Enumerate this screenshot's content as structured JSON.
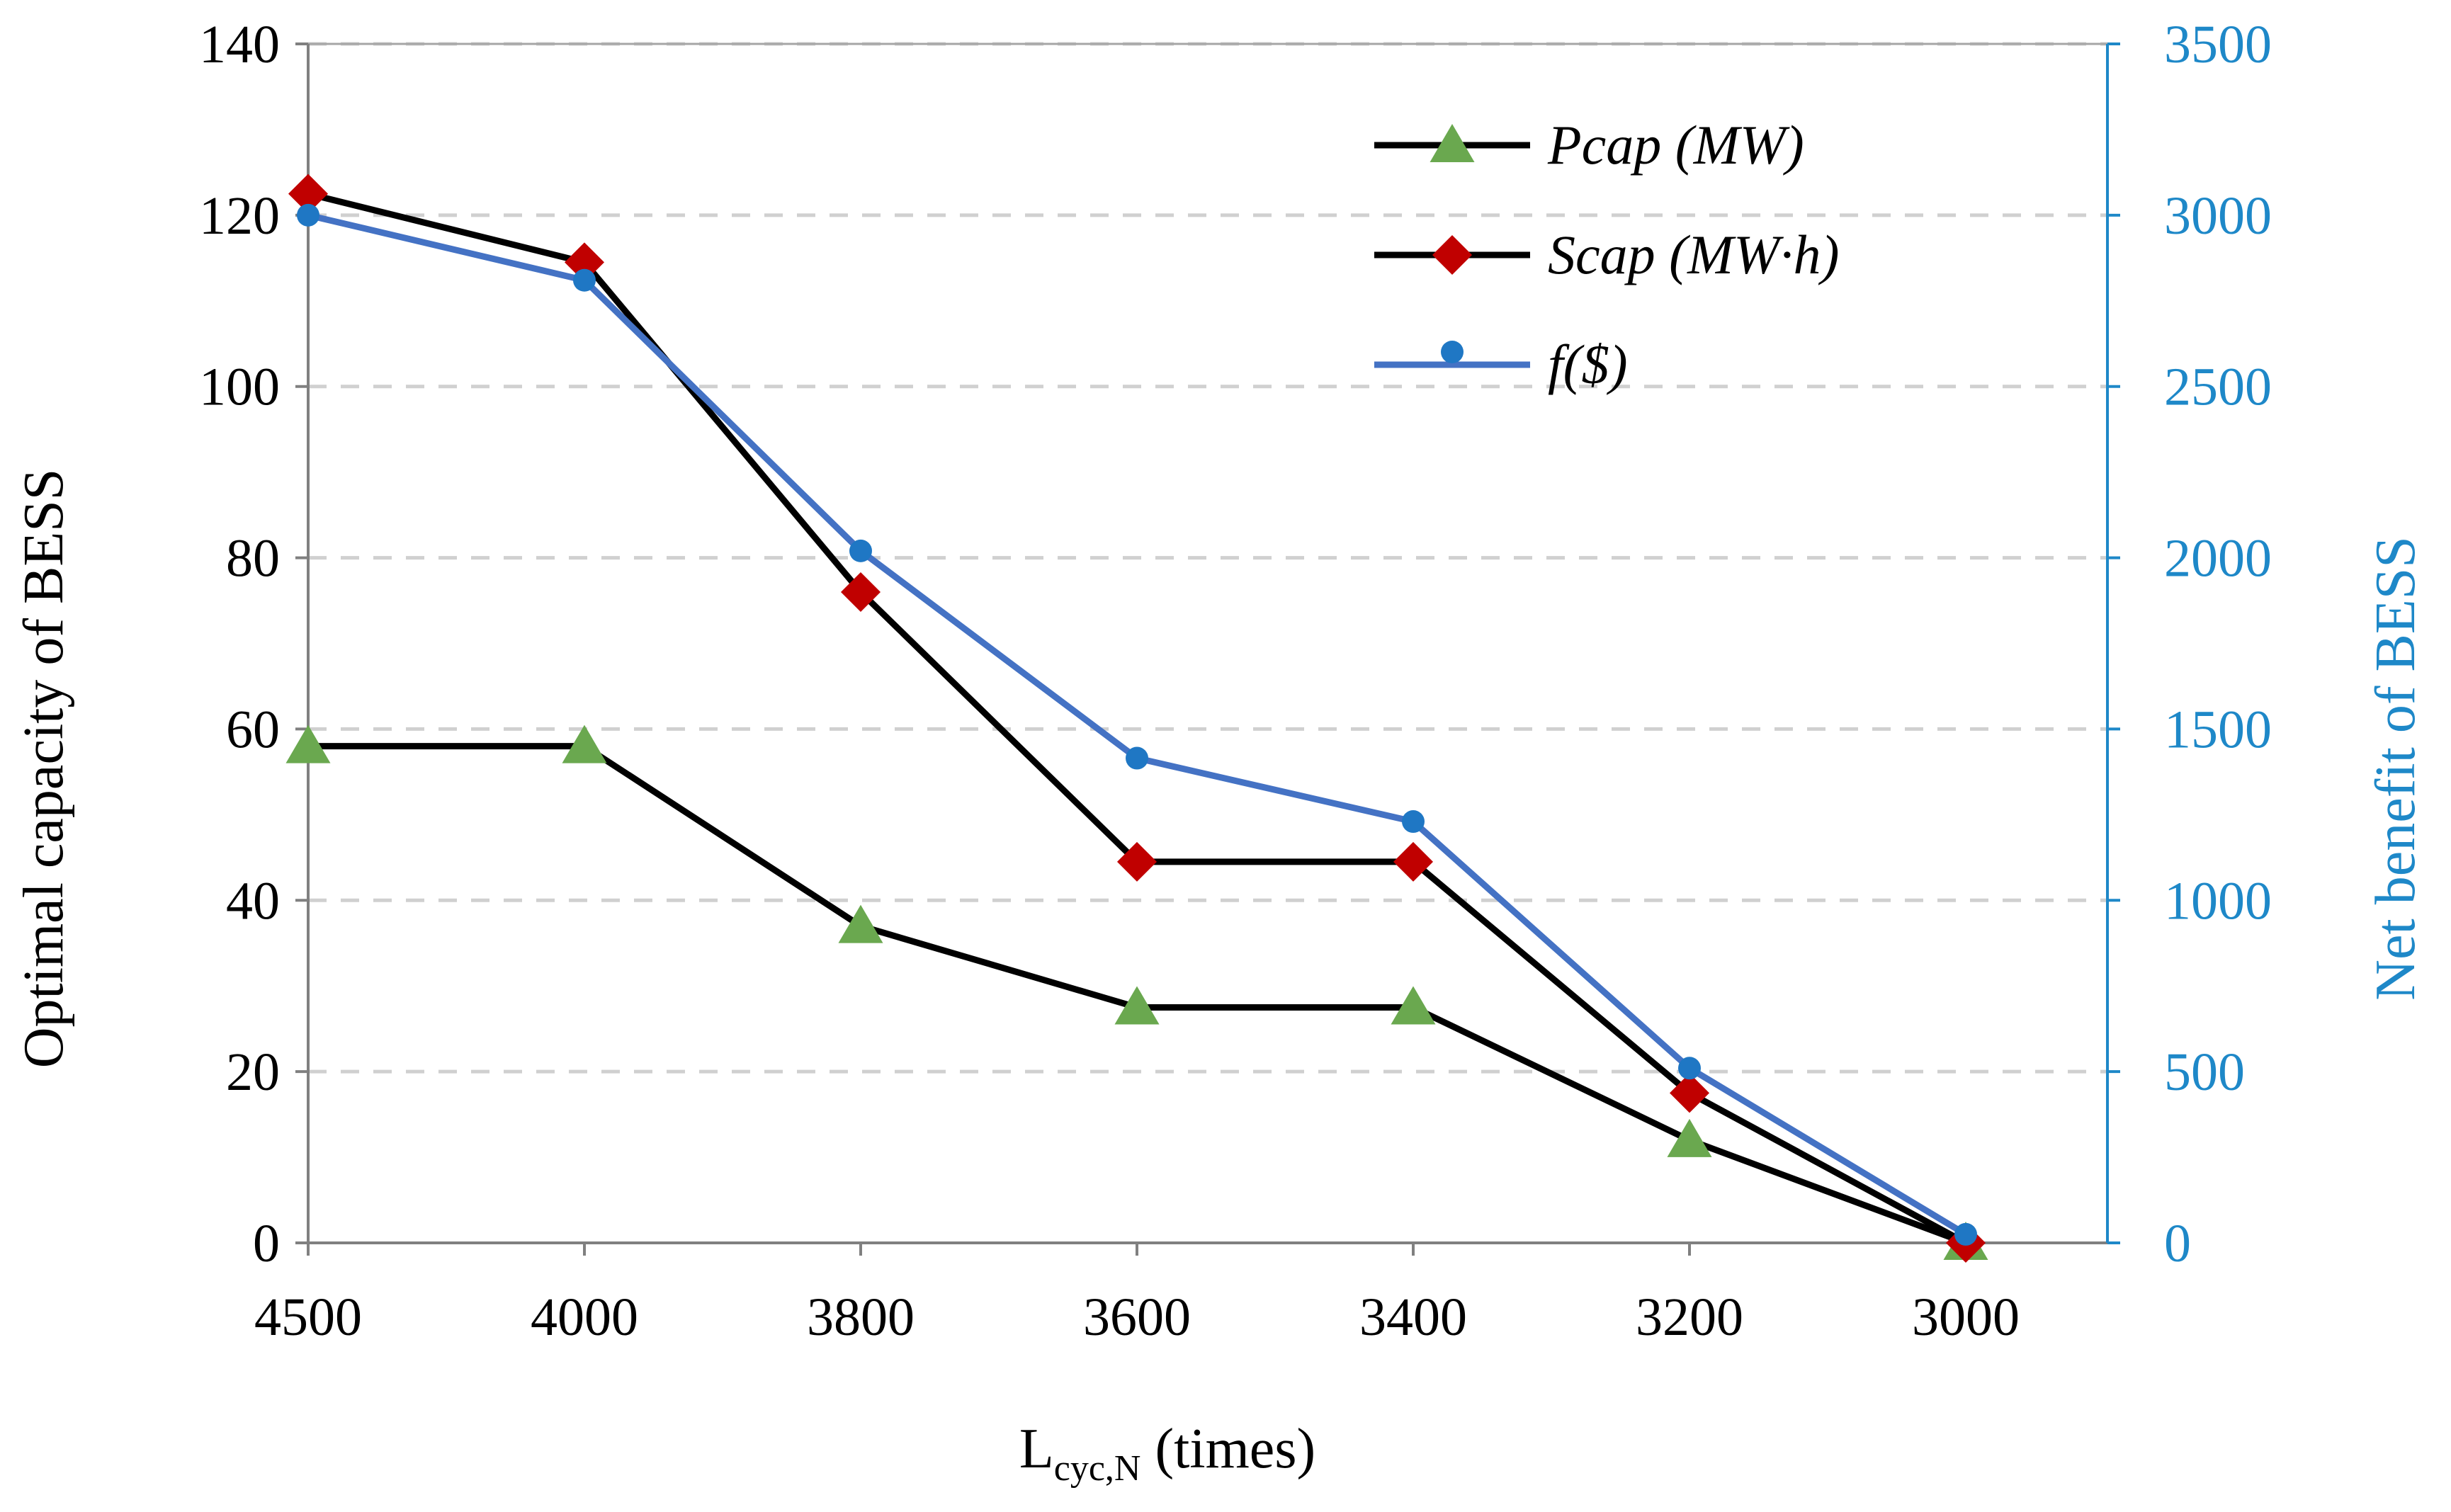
{
  "chart_data": {
    "type": "line",
    "categories": [
      "4500",
      "4000",
      "3800",
      "3600",
      "3400",
      "3200",
      "3000"
    ],
    "left_axis": {
      "label": "Optimal capacity of BESS",
      "min": 0,
      "max": 140,
      "step": 20,
      "ticks": [
        "0",
        "20",
        "40",
        "60",
        "80",
        "100",
        "120",
        "140"
      ]
    },
    "right_axis": {
      "label": "Net benefit of BESS",
      "min": 0,
      "max": 3500,
      "step": 500,
      "ticks": [
        "0",
        "500",
        "1000",
        "1500",
        "2000",
        "2500",
        "3000",
        "3500"
      ],
      "color": "#1e88c8"
    },
    "x_axis": {
      "label_main": "L",
      "label_sub": "cyc,N",
      "label_suffix": " (times)"
    },
    "grid": "horizontal-dashed",
    "legend_position": "top-right",
    "series": [
      {
        "name": "Pcap (MW)",
        "axis": "left",
        "marker": "triangle",
        "line_color": "#000000",
        "marker_color": "#6aa84f",
        "values": [
          58,
          58,
          37,
          27.5,
          27.5,
          12,
          0
        ]
      },
      {
        "name": "Scap (MW·h)",
        "axis": "left",
        "marker": "diamond",
        "line_color": "#000000",
        "marker_color": "#c00000",
        "values": [
          122.5,
          114.5,
          76,
          44.5,
          44.5,
          17.5,
          0
        ]
      },
      {
        "name": "f($)",
        "axis": "right",
        "marker": "circle",
        "line_color": "#4472c4",
        "marker_color": "#1f77c4",
        "values": [
          3000,
          2810,
          2020,
          1415,
          1230,
          510,
          25
        ]
      }
    ]
  }
}
